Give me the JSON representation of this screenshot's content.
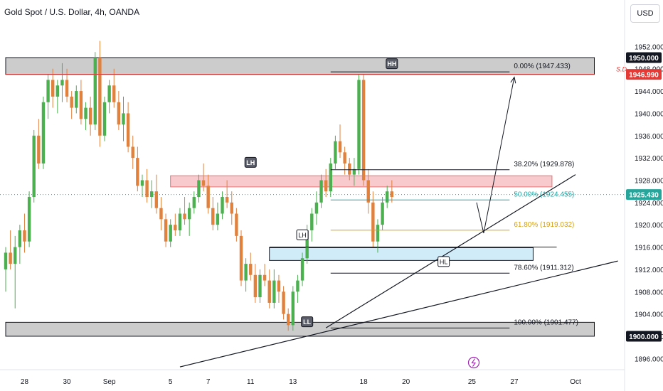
{
  "header": {
    "symbol_title": "Gold Spot / U.S. Dollar, 4h, OANDA",
    "currency_button": "USD"
  },
  "colors": {
    "bull": "#26a69a",
    "bull_fill": "#4caf50",
    "bear": "#e0813d",
    "resistance_zone": "#f5b8bd",
    "support_zone": "#bfe6f5",
    "grey_zone": "#c6c6c6",
    "red_line": "#e53935",
    "fib_50": "#21a6a6",
    "fib_618": "#d4a017"
  },
  "chart_data": {
    "type": "candlestick",
    "title": "Gold Spot / U.S. Dollar, 4h, OANDA",
    "ylim": [
      1894,
      1956
    ],
    "y_ticks": [
      1896,
      1900,
      1904,
      1908,
      1912,
      1916,
      1920,
      1924,
      1928,
      1932,
      1936,
      1940,
      1944,
      1948,
      1952
    ],
    "x_ticks": [
      {
        "label": "28",
        "bar": 4
      },
      {
        "label": "30",
        "bar": 13
      },
      {
        "label": "Sep",
        "bar": 22
      },
      {
        "label": "5",
        "bar": 35
      },
      {
        "label": "7",
        "bar": 43
      },
      {
        "label": "11",
        "bar": 52
      },
      {
        "label": "13",
        "bar": 61
      },
      {
        "label": "18",
        "bar": 76
      },
      {
        "label": "20",
        "bar": 85
      },
      {
        "label": "25",
        "bar": 99
      },
      {
        "label": "27",
        "bar": 108
      },
      {
        "label": "Oct",
        "bar": 121
      }
    ],
    "price_labels": [
      {
        "value": 1950.0,
        "text": "1950.000",
        "style": "black"
      },
      {
        "value": 1946.99,
        "text": "1946.990",
        "style": "red"
      },
      {
        "value": 1925.43,
        "text": "1925.430",
        "style": "green"
      },
      {
        "value": 1900.0,
        "text": "1900.000",
        "style": "black"
      }
    ],
    "sd_label": "S.D",
    "ohlc": [
      [
        1912,
        1916,
        1908,
        1915
      ],
      [
        1915,
        1919,
        1912,
        1913
      ],
      [
        1913,
        1918,
        1905,
        1916
      ],
      [
        1916,
        1920,
        1913,
        1919
      ],
      [
        1919,
        1922,
        1915,
        1917
      ],
      [
        1917,
        1926,
        1916,
        1925
      ],
      [
        1925,
        1937,
        1924,
        1936
      ],
      [
        1936,
        1939,
        1930,
        1931
      ],
      [
        1931,
        1943,
        1930,
        1942
      ],
      [
        1942,
        1947,
        1939,
        1946
      ],
      [
        1946,
        1948,
        1941,
        1943
      ],
      [
        1943,
        1946,
        1940,
        1945
      ],
      [
        1945,
        1949,
        1942,
        1946
      ],
      [
        1946,
        1948,
        1942,
        1943
      ],
      [
        1943,
        1944,
        1939,
        1941
      ],
      [
        1941,
        1945,
        1940,
        1944
      ],
      [
        1944,
        1946,
        1938,
        1939
      ],
      [
        1939,
        1942,
        1937,
        1941
      ],
      [
        1941,
        1943,
        1936,
        1938
      ],
      [
        1938,
        1951,
        1937,
        1950
      ],
      [
        1950,
        1953,
        1934,
        1936
      ],
      [
        1936,
        1943,
        1935,
        1942
      ],
      [
        1942,
        1946,
        1940,
        1945
      ],
      [
        1945,
        1948,
        1941,
        1942
      ],
      [
        1942,
        1944,
        1937,
        1938
      ],
      [
        1938,
        1943,
        1935,
        1940
      ],
      [
        1940,
        1942,
        1933,
        1934
      ],
      [
        1934,
        1936,
        1930,
        1932
      ],
      [
        1932,
        1934,
        1926,
        1927
      ],
      [
        1927,
        1929,
        1925,
        1928
      ],
      [
        1928,
        1930,
        1924,
        1925
      ],
      [
        1925,
        1928,
        1923,
        1926
      ],
      [
        1926,
        1929,
        1922,
        1923
      ],
      [
        1923,
        1925,
        1919,
        1921
      ],
      [
        1921,
        1922,
        1916,
        1917
      ],
      [
        1917,
        1921,
        1916,
        1920
      ],
      [
        1920,
        1922,
        1918,
        1919
      ],
      [
        1919,
        1923,
        1918,
        1922
      ],
      [
        1922,
        1925,
        1920,
        1921
      ],
      [
        1921,
        1924,
        1918,
        1923
      ],
      [
        1923,
        1926,
        1922,
        1925
      ],
      [
        1925,
        1929,
        1924,
        1928
      ],
      [
        1928,
        1931,
        1926,
        1927
      ],
      [
        1927,
        1929,
        1922,
        1923
      ],
      [
        1923,
        1925,
        1919,
        1920
      ],
      [
        1920,
        1924,
        1919,
        1922
      ],
      [
        1922,
        1926,
        1921,
        1925
      ],
      [
        1925,
        1928,
        1923,
        1924
      ],
      [
        1924,
        1926,
        1920,
        1922
      ],
      [
        1922,
        1923,
        1917,
        1918
      ],
      [
        1918,
        1919,
        1909,
        1910
      ],
      [
        1910,
        1914,
        1908,
        1913
      ],
      [
        1913,
        1915,
        1910,
        1911
      ],
      [
        1911,
        1913,
        1906,
        1907
      ],
      [
        1907,
        1912,
        1906,
        1911
      ],
      [
        1911,
        1913,
        1909,
        1910
      ],
      [
        1910,
        1912,
        1905,
        1906
      ],
      [
        1906,
        1912,
        1905,
        1910
      ],
      [
        1910,
        1911,
        1906,
        1908
      ],
      [
        1908,
        1909,
        1903,
        1904
      ],
      [
        1904,
        1905,
        1901,
        1902
      ],
      [
        1902,
        1909,
        1901,
        1908
      ],
      [
        1908,
        1911,
        1906,
        1910
      ],
      [
        1910,
        1915,
        1909,
        1914
      ],
      [
        1914,
        1920,
        1913,
        1919
      ],
      [
        1919,
        1923,
        1917,
        1922
      ],
      [
        1922,
        1926,
        1920,
        1924
      ],
      [
        1924,
        1929,
        1923,
        1928
      ],
      [
        1928,
        1930,
        1925,
        1926
      ],
      [
        1926,
        1932,
        1925,
        1931
      ],
      [
        1931,
        1936,
        1930,
        1935
      ],
      [
        1935,
        1938,
        1932,
        1933
      ],
      [
        1933,
        1934,
        1929,
        1931
      ],
      [
        1931,
        1932,
        1928,
        1929
      ],
      [
        1929,
        1932,
        1927,
        1930
      ],
      [
        1930,
        1947,
        1929,
        1946
      ],
      [
        1946,
        1947,
        1927,
        1928
      ],
      [
        1928,
        1930,
        1922,
        1924
      ],
      [
        1924,
        1926,
        1916,
        1917
      ],
      [
        1917,
        1921,
        1915,
        1920
      ],
      [
        1920,
        1925,
        1919,
        1924
      ],
      [
        1924,
        1927,
        1923,
        1926
      ],
      [
        1926,
        1928,
        1924,
        1925
      ]
    ],
    "zones": [
      {
        "name": "upper-grey-zone",
        "y1": 1947.0,
        "y2": 1950.0,
        "start": 0,
        "end": 125,
        "color": "grey"
      },
      {
        "name": "lower-grey-zone",
        "y1": 1900.0,
        "y2": 1902.5,
        "start": 0,
        "end": 125,
        "color": "grey"
      },
      {
        "name": "resistance-zone",
        "y1": 1926.8,
        "y2": 1928.8,
        "start": 35,
        "end": 116,
        "color": "red"
      },
      {
        "name": "support-zone",
        "y1": 1913.6,
        "y2": 1915.9,
        "start": 56,
        "end": 112,
        "color": "blue"
      }
    ],
    "fibonacci": {
      "start": 69,
      "end": 107,
      "levels": [
        {
          "pct": "0.00%",
          "value": 1947.433,
          "label": "0.00% (1947.433)",
          "color": "#131722"
        },
        {
          "pct": "38.20%",
          "value": 1929.878,
          "label": "38.20% (1929.878)",
          "color": "#131722"
        },
        {
          "pct": "50.00%",
          "value": 1924.455,
          "label": "50.00% (1924.455)",
          "color": "#21a6a6"
        },
        {
          "pct": "61.80%",
          "value": 1919.032,
          "label": "61.80% (1919.032)",
          "color": "#d4a017"
        },
        {
          "pct": "78.60%",
          "value": 1911.312,
          "label": "78.60% (1911.312)",
          "color": "#131722"
        },
        {
          "pct": "100.00%",
          "value": 1901.477,
          "label": "100.00% (1901.477)",
          "color": "#131722"
        }
      ]
    },
    "horizontal_lines": [
      {
        "name": "support-line",
        "value": 1916.0,
        "start": 56,
        "end": 117
      },
      {
        "name": "red-resistance-line",
        "value": 1946.99,
        "start": 0,
        "end": 125
      }
    ],
    "trendlines": [
      {
        "name": "upper-trendline",
        "from": [
          68,
          1901.5
        ],
        "to": [
          121,
          1929.0
        ]
      },
      {
        "name": "lower-trendline",
        "from": [
          37,
          1894.5
        ],
        "to": [
          130,
          1913.5
        ]
      }
    ],
    "projection": {
      "points": [
        [
          100,
          1924.0
        ],
        [
          101.5,
          1918.5
        ],
        [
          108,
          1946.5
        ]
      ]
    },
    "structure_labels": [
      {
        "text": "HH",
        "bar": 82,
        "value": 1948.9,
        "style": "dark"
      },
      {
        "text": "LH",
        "bar": 52,
        "value": 1931.2,
        "style": "dark"
      },
      {
        "text": "LH",
        "bar": 63,
        "value": 1918.2,
        "style": "light"
      },
      {
        "text": "HL",
        "bar": 93,
        "value": 1913.4,
        "style": "light"
      },
      {
        "text": "LL",
        "bar": 64,
        "value": 1902.6,
        "style": "dark"
      }
    ]
  }
}
